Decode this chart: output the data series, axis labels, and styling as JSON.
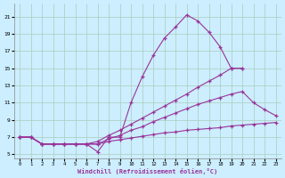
{
  "xlabel": "Windchill (Refroidissement éolien,°C)",
  "bg_color": "#cceeff",
  "grid_color": "#aaccbb",
  "line_color": "#993399",
  "x_ticks": [
    0,
    1,
    2,
    3,
    4,
    5,
    6,
    7,
    8,
    9,
    10,
    11,
    12,
    13,
    14,
    15,
    16,
    17,
    18,
    19,
    20,
    21,
    22,
    23
  ],
  "ylim": [
    4.5,
    22.5
  ],
  "xlim": [
    -0.5,
    23.5
  ],
  "yticks": [
    5,
    7,
    9,
    11,
    13,
    15,
    17,
    19,
    21
  ],
  "lines": [
    {
      "x": [
        0,
        1,
        2,
        3,
        4,
        5,
        6,
        7,
        8,
        9,
        10,
        11,
        12,
        13,
        14,
        15,
        16,
        17,
        18,
        19,
        20
      ],
      "y": [
        7.0,
        7.0,
        6.2,
        6.2,
        6.2,
        6.2,
        6.2,
        5.3,
        7.0,
        7.0,
        11.0,
        14.0,
        16.5,
        18.5,
        19.8,
        21.2,
        20.5,
        19.2,
        17.5,
        15.0,
        15.0
      ]
    },
    {
      "x": [
        0,
        1,
        2,
        3,
        4,
        5,
        6,
        7,
        8,
        9,
        10,
        11,
        12,
        13,
        14,
        15,
        16,
        17,
        18,
        19,
        20,
        21,
        22,
        23
      ],
      "y": [
        7.0,
        7.0,
        6.2,
        6.2,
        6.2,
        6.2,
        6.2,
        6.5,
        7.2,
        7.8,
        8.5,
        9.2,
        9.9,
        10.6,
        11.3,
        12.0,
        12.8,
        13.5,
        14.2,
        15.0,
        15.0,
        null,
        null,
        null
      ]
    },
    {
      "x": [
        0,
        1,
        2,
        3,
        4,
        5,
        6,
        7,
        8,
        9,
        10,
        11,
        12,
        13,
        14,
        15,
        16,
        17,
        18,
        19,
        20,
        21,
        22,
        23
      ],
      "y": [
        7.0,
        7.0,
        6.2,
        6.2,
        6.2,
        6.2,
        6.2,
        6.2,
        6.8,
        7.2,
        7.8,
        8.2,
        8.8,
        9.3,
        9.8,
        10.3,
        10.8,
        11.2,
        11.6,
        12.0,
        12.3,
        11.0,
        10.2,
        9.5
      ]
    },
    {
      "x": [
        0,
        1,
        2,
        3,
        4,
        5,
        6,
        7,
        8,
        9,
        10,
        11,
        12,
        13,
        14,
        15,
        16,
        17,
        18,
        19,
        20,
        21,
        22,
        23
      ],
      "y": [
        7.0,
        7.0,
        6.2,
        6.2,
        6.2,
        6.2,
        6.2,
        6.2,
        6.5,
        6.7,
        6.9,
        7.1,
        7.3,
        7.5,
        7.6,
        7.8,
        7.9,
        8.0,
        8.1,
        8.3,
        8.4,
        8.5,
        8.6,
        8.7
      ]
    }
  ]
}
